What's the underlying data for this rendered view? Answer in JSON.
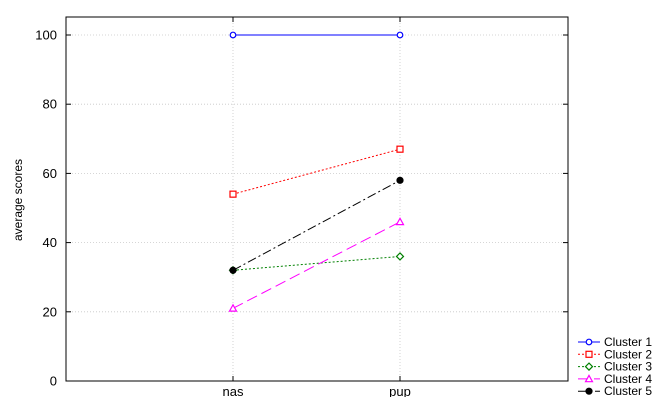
{
  "chart_data": {
    "type": "line",
    "title": "",
    "xlabel": "",
    "ylabel": "average scores",
    "categories": [
      "nas",
      "pup"
    ],
    "ylim": [
      0,
      100
    ],
    "yticks": [
      0,
      20,
      40,
      60,
      80,
      100
    ],
    "grid": true,
    "legend_position": "bottom-right",
    "series": [
      {
        "name": "Cluster 1",
        "values": [
          100,
          100
        ],
        "color": "#0000ff",
        "marker": "circle-open",
        "dash": "solid"
      },
      {
        "name": "Cluster 2",
        "values": [
          54,
          67
        ],
        "color": "#ff0000",
        "marker": "square-open",
        "dash": "dotted"
      },
      {
        "name": "Cluster 3",
        "values": [
          32,
          36
        ],
        "color": "#008000",
        "marker": "diamond-open",
        "dash": "dotted"
      },
      {
        "name": "Cluster 4",
        "values": [
          21,
          46
        ],
        "color": "#ff00ff",
        "marker": "triangle-open",
        "dash": "longdash"
      },
      {
        "name": "Cluster 5",
        "values": [
          32,
          58
        ],
        "color": "#000000",
        "marker": "circle-filled",
        "dash": "dashdot"
      }
    ]
  }
}
